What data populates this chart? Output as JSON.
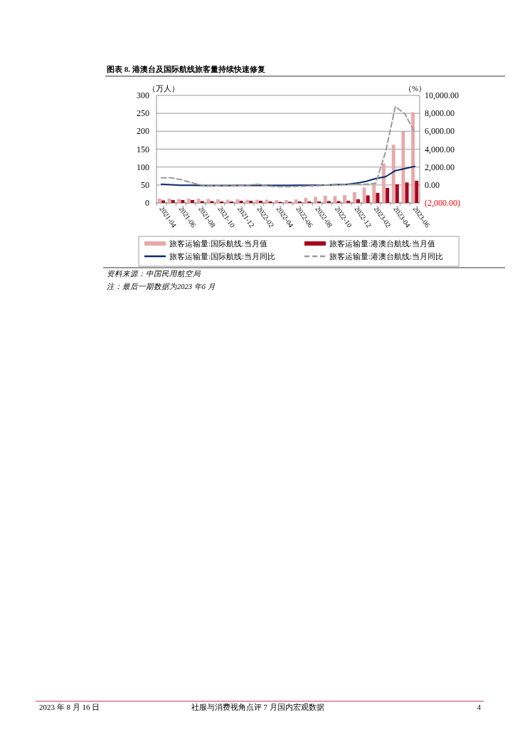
{
  "chart_data": {
    "type": "bar",
    "title": "图表 8. 港澳台及国际航线旅客量持续快速修复",
    "categories": [
      "2021-04",
      null,
      "2021-06",
      null,
      "2021-08",
      null,
      "2021-10",
      null,
      "2021-12",
      null,
      "2022-02",
      null,
      "2022-04",
      null,
      "2022-06",
      null,
      "2022-08",
      null,
      "2022-10",
      null,
      "2022-12",
      null,
      "2023-02",
      null,
      "2023-04",
      null,
      "2023-06"
    ],
    "series": [
      {
        "name": "旅客运输量:国际航线:当月值",
        "axis": "y",
        "color": "#e8a9aa",
        "values": [
          12,
          12,
          11,
          12,
          12,
          11,
          10,
          9,
          10,
          9,
          9,
          9,
          8,
          8,
          10,
          14,
          17,
          20,
          19,
          22,
          30,
          43,
          55,
          110,
          162,
          199,
          253
        ]
      },
      {
        "name": "旅客运输量:港澳台航线:当月值",
        "axis": "y",
        "color": "#a8001e",
        "values": [
          7,
          8,
          8,
          8,
          5,
          5,
          4,
          4,
          6,
          6,
          6,
          4,
          3,
          3,
          4,
          4,
          4,
          5,
          5,
          6,
          10,
          21,
          28,
          42,
          52,
          57,
          62
        ]
      },
      {
        "name": "旅客运输量:国际航线:当月同比",
        "type": "line",
        "axis": "y2",
        "color": "#0d2a6b",
        "line_style": "solid",
        "values": [
          80,
          20,
          -40,
          -40,
          -60,
          -80,
          -80,
          -80,
          -60,
          -60,
          -40,
          -60,
          -60,
          -60,
          -40,
          -40,
          -40,
          -20,
          40,
          60,
          200,
          400,
          720,
          920,
          1600,
          1840,
          2080
        ]
      },
      {
        "name": "旅客运输量:港澳台航线:当月同比",
        "type": "line",
        "axis": "y2",
        "color": "#9a9a9a",
        "line_style": "dashed",
        "values": [
          800,
          800,
          600,
          280,
          20,
          -40,
          -120,
          -120,
          -80,
          0,
          80,
          -120,
          -200,
          -200,
          -160,
          -120,
          -80,
          0,
          0,
          40,
          80,
          80,
          200,
          3680,
          8760,
          7920,
          5840
        ]
      }
    ],
    "ylabel": "（万人）",
    "y2label": "（%）",
    "ylim": [
      0,
      300
    ],
    "yticks": [
      0,
      50,
      100,
      150,
      200,
      250,
      300
    ],
    "y2lim": [
      -2000,
      10000
    ],
    "y2ticks": [
      {
        "value": -2000,
        "label": "(2,000.00)"
      },
      {
        "value": 0,
        "label": "0.00"
      },
      {
        "value": 2000,
        "label": "2,000.00"
      },
      {
        "value": 4000,
        "label": "4,000.00"
      },
      {
        "value": 6000,
        "label": "6,000.00"
      },
      {
        "value": 8000,
        "label": "8,000.00"
      },
      {
        "value": 10000,
        "label": "10,000.00"
      }
    ],
    "grid": "y",
    "legend": "bottom",
    "annotations": [
      "资料来源：中国民用航空局",
      "注：最后一期数据为2023 年6 月",
      "2023 年 8 月 16 日",
      "社服与消费视角点评 7 月国内宏观数据",
      "4"
    ]
  }
}
